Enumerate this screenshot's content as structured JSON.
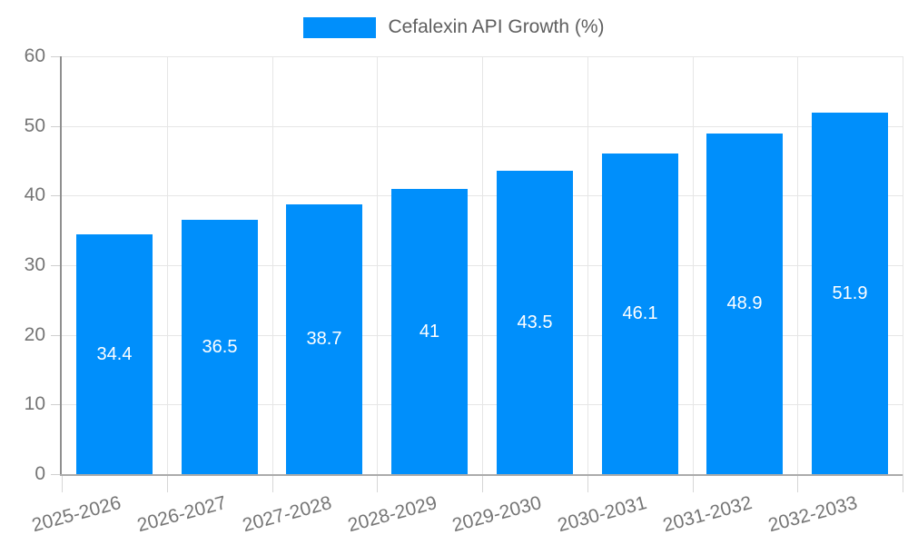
{
  "chart_data": {
    "type": "bar",
    "legend_label": "Cefalexin API Growth (%)",
    "legend_position": "top-center",
    "categories": [
      "2025-2026",
      "2026-2027",
      "2027-2028",
      "2028-2029",
      "2029-2030",
      "2030-2031",
      "2031-2032",
      "2032-2033"
    ],
    "values": [
      34.4,
      36.5,
      38.7,
      41,
      43.5,
      46.1,
      48.9,
      51.9
    ],
    "value_labels": [
      "34.4",
      "36.5",
      "38.7",
      "41",
      "43.5",
      "46.1",
      "48.9",
      "51.9"
    ],
    "series_name": "Cefalexin API Growth (%)",
    "xlabel": "",
    "ylabel": "",
    "ylim": [
      0,
      60
    ],
    "yticks": [
      0,
      10,
      20,
      30,
      40,
      50,
      60
    ],
    "ytick_labels": [
      "0",
      "10",
      "20",
      "30",
      "40",
      "50",
      "60"
    ],
    "grid": true,
    "value_label_position": "center-inside",
    "xtick_label_rotation_deg": -15
  },
  "colors": {
    "bar": "#008FFB",
    "axis_text": "#757575",
    "legend_text": "#5f5f5f",
    "gridline": "#e6e6e6",
    "axis_line": "#8f8f8f",
    "value_label_text": "#ffffff",
    "background": "#ffffff"
  }
}
